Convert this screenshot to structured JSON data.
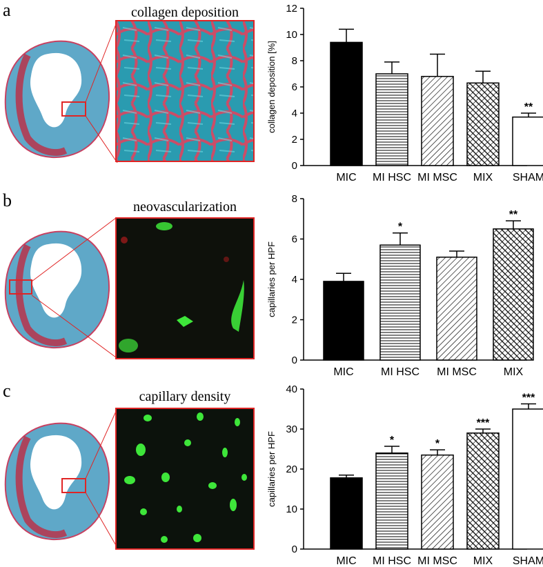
{
  "panels": [
    {
      "letter": "a",
      "micro_title": "collagen deposition",
      "chart_data": {
        "type": "bar",
        "categories": [
          "MIC",
          "MI HSC",
          "MI MSC",
          "MIX",
          "SHAM"
        ],
        "values": [
          9.4,
          7.0,
          6.8,
          6.3,
          3.7
        ],
        "errors": [
          1.0,
          0.9,
          1.7,
          0.9,
          0.3
        ],
        "significance": [
          "",
          "",
          "",
          "",
          "**"
        ],
        "patterns": [
          "solid",
          "horizontal",
          "diagonal",
          "crosshatch",
          "empty"
        ],
        "ylabel": "collagen deposition [%]",
        "ylim": [
          0,
          12
        ],
        "yticks": [
          0,
          2,
          4,
          6,
          8,
          10,
          12
        ],
        "grid": false
      }
    },
    {
      "letter": "b",
      "micro_title": "neovascularization",
      "chart_data": {
        "type": "bar",
        "categories": [
          "MIC",
          "MI HSC",
          "MI MSC",
          "MIX"
        ],
        "values": [
          3.9,
          5.7,
          5.1,
          6.5
        ],
        "errors": [
          0.4,
          0.6,
          0.3,
          0.4
        ],
        "significance": [
          "",
          "*",
          "",
          "**"
        ],
        "patterns": [
          "solid",
          "horizontal",
          "diagonal",
          "crosshatch"
        ],
        "ylabel": "capillaries per HPF",
        "ylim": [
          0,
          8
        ],
        "yticks": [
          0,
          2,
          4,
          6,
          8
        ],
        "grid": false
      }
    },
    {
      "letter": "c",
      "micro_title": "capillary density",
      "chart_data": {
        "type": "bar",
        "categories": [
          "MIC",
          "MI HSC",
          "MI MSC",
          "MIX",
          "SHAM"
        ],
        "values": [
          17.8,
          24.0,
          23.5,
          29.0,
          35.0
        ],
        "errors": [
          0.7,
          1.7,
          1.3,
          1.0,
          1.3
        ],
        "significance": [
          "",
          "*",
          "*",
          "***",
          "***"
        ],
        "patterns": [
          "solid",
          "horizontal",
          "diagonal",
          "crosshatch",
          "empty"
        ],
        "ylabel": "capillaries per HPF",
        "ylim": [
          0,
          40
        ],
        "yticks": [
          0,
          10,
          20,
          30,
          40
        ],
        "grid": false
      }
    }
  ],
  "colors": {
    "tissue_blue": "#5fa8c8",
    "tissue_red": "#b8334a",
    "zoom_frame": "#e02424",
    "collagen_bg": "#2a9bb0",
    "collagen_red": "#e8405a",
    "fluor_bg": "#0e110b",
    "fluor_green": "#3ee63a"
  }
}
